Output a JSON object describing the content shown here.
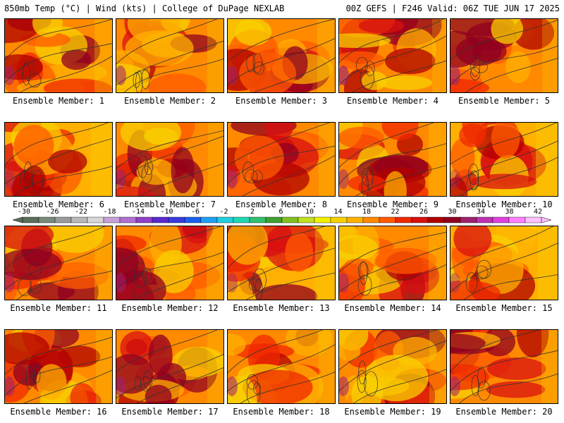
{
  "header": {
    "title_left": "850mb Temp (°C) | Wind (kts) | College of DuPage NEXLAB",
    "title_right": "00Z GEFS | F246 Valid: 06Z TUE JUN 17 2025"
  },
  "panels": [
    {
      "label": "Ensemble Member: 1",
      "warmth": 0.55
    },
    {
      "label": "Ensemble Member: 2",
      "warmth": 0.62
    },
    {
      "label": "Ensemble Member: 3",
      "warmth": 0.58
    },
    {
      "label": "Ensemble Member: 4",
      "warmth": 0.72
    },
    {
      "label": "Ensemble Member: 5",
      "warmth": 0.68
    },
    {
      "label": "Ensemble Member: 6",
      "warmth": 0.4
    },
    {
      "label": "Ensemble Member: 7",
      "warmth": 0.66
    },
    {
      "label": "Ensemble Member: 8",
      "warmth": 0.62
    },
    {
      "label": "Ensemble Member: 9",
      "warmth": 0.55
    },
    {
      "label": "Ensemble Member: 10",
      "warmth": 0.35
    },
    {
      "label": "Ensemble Member: 11",
      "warmth": 0.58
    },
    {
      "label": "Ensemble Member: 12",
      "warmth": 0.6
    },
    {
      "label": "Ensemble Member: 13",
      "warmth": 0.48
    },
    {
      "label": "Ensemble Member: 14",
      "warmth": 0.58
    },
    {
      "label": "Ensemble Member: 15",
      "warmth": 0.45
    },
    {
      "label": "Ensemble Member: 16",
      "warmth": 0.62
    },
    {
      "label": "Ensemble Member: 17",
      "warmth": 0.63
    },
    {
      "label": "Ensemble Member: 18",
      "warmth": 0.62
    },
    {
      "label": "Ensemble Member: 19",
      "warmth": 0.6
    },
    {
      "label": "Ensemble Member: 20",
      "warmth": 0.62
    }
  ],
  "colorbar": {
    "ticks": [
      "-30",
      "-26",
      "-22",
      "-18",
      "-14",
      "-10",
      "-6",
      "-2",
      "2",
      "6",
      "10",
      "14",
      "18",
      "22",
      "26",
      "30",
      "34",
      "38",
      "42"
    ],
    "colors": [
      "#5a6e5a",
      "#7a8a7a",
      "#9a9a9a",
      "#b8b8b8",
      "#d8d8d8",
      "#c8a0d8",
      "#b070d0",
      "#9040c8",
      "#5a2ad0",
      "#3a3ae0",
      "#1a60f0",
      "#20a0f0",
      "#20d0e0",
      "#20d8b0",
      "#30c070",
      "#40a030",
      "#80c020",
      "#c0e020",
      "#f0f000",
      "#f8d000",
      "#ffb000",
      "#ff8a00",
      "#ff5a00",
      "#f02800",
      "#d81010",
      "#b00000",
      "#900020",
      "#a02070",
      "#c030b0",
      "#e040e0",
      "#ff80ff",
      "#ffc0ff"
    ]
  }
}
